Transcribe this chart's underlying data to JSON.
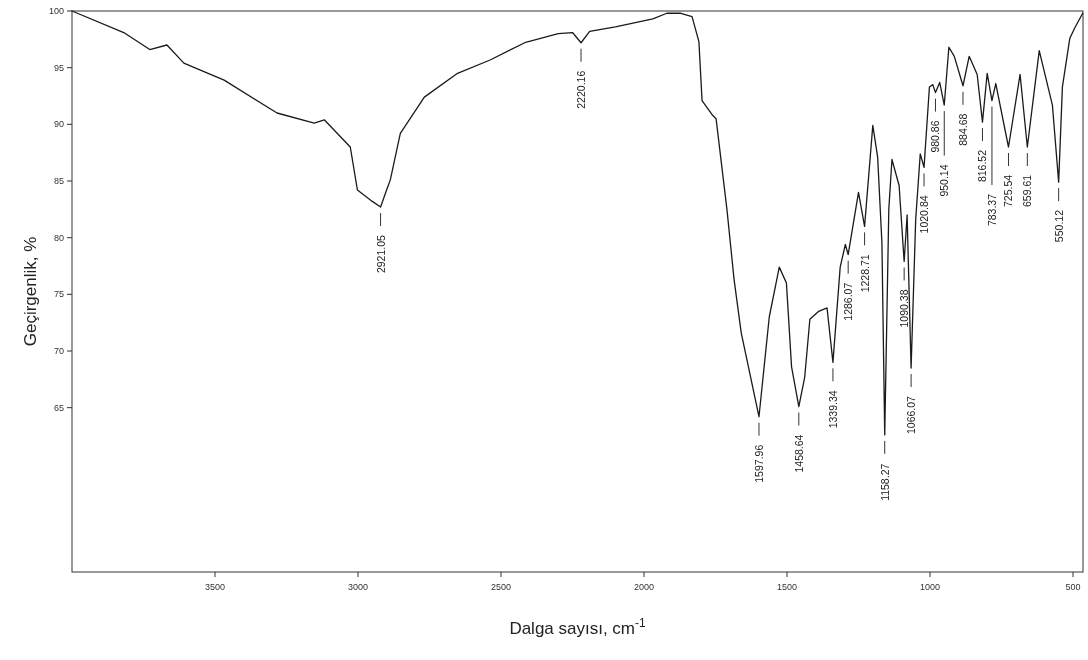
{
  "chart_data": {
    "type": "line",
    "xlabel": "Dalga sayısı, cm$^{-1}$",
    "ylabel": "Geçirgenlik, %",
    "xlim": [
      4000,
      465
    ],
    "ylim": [
      50.5,
      100
    ],
    "xticks": [
      3500,
      3000,
      2500,
      2000,
      1500,
      1000,
      500
    ],
    "yticks": [
      65,
      70,
      75,
      80,
      85,
      90,
      95,
      100
    ],
    "x": [
      4000,
      3819,
      3728,
      3668,
      3609,
      3468,
      3283,
      3153,
      3118,
      3027,
      3002,
      2950,
      2921.05,
      2900,
      2887,
      2852,
      2768,
      2652,
      2536,
      2417,
      2300,
      2250,
      2220.16,
      2190,
      2100,
      1969,
      1920,
      1871,
      1832,
      1808,
      1797,
      1760,
      1748,
      1710,
      1685,
      1660,
      1597.96,
      1562,
      1527,
      1502,
      1484,
      1458.64,
      1438,
      1420,
      1389,
      1360,
      1339.34,
      1314,
      1296,
      1286.07,
      1250,
      1228.71,
      1200,
      1183,
      1168,
      1158.27,
      1144,
      1133,
      1108,
      1090.38,
      1080,
      1066.07,
      1050,
      1034,
      1020.84,
      1002,
      990,
      980.86,
      966,
      950.14,
      934,
      915,
      884.68,
      863,
      835,
      816.52,
      800,
      783.37,
      770,
      725.54,
      685,
      659.61,
      618,
      572,
      550.12,
      537,
      511,
      494,
      477,
      466
    ],
    "series": [
      {
        "color": "#1a1a1a",
        "values": [
          100,
          98.1,
          96.6,
          97.0,
          95.4,
          93.9,
          91.0,
          90.1,
          90.4,
          88.0,
          84.2,
          83.2,
          82.7,
          84.2,
          85.1,
          89.2,
          92.4,
          94.5,
          95.7,
          97.2,
          98.0,
          98.1,
          97.2,
          98.2,
          98.6,
          99.3,
          99.8,
          99.8,
          99.5,
          97.3,
          92.1,
          90.8,
          90.5,
          82.5,
          76.3,
          71.6,
          64.2,
          73.0,
          77.4,
          76.0,
          68.6,
          65.1,
          67.7,
          72.8,
          73.5,
          73.8,
          69.0,
          77.4,
          79.4,
          78.5,
          84.0,
          81.0,
          89.9,
          87.1,
          79.5,
          62.6,
          82.5,
          86.9,
          84.6,
          77.9,
          82.0,
          68.5,
          81.6,
          87.4,
          86.2,
          93.3,
          93.5,
          92.8,
          93.7,
          91.7,
          96.8,
          96.0,
          93.4,
          96.0,
          94.4,
          90.2,
          94.5,
          92.1,
          93.6,
          88.0,
          94.4,
          88.0,
          96.5,
          91.7,
          84.9,
          93.3,
          97.6,
          98.5,
          99.3,
          99.8
        ]
      }
    ],
    "annotations": [
      {
        "text": "2921.05",
        "x": 2921.05,
        "y": 82.7
      },
      {
        "text": "2220.16",
        "x": 2220.16,
        "y": 97.2
      },
      {
        "text": "1597.96",
        "x": 1597.96,
        "y": 64.2
      },
      {
        "text": "1458.64",
        "x": 1458.64,
        "y": 65.1
      },
      {
        "text": "1339.34",
        "x": 1339.34,
        "y": 69.0
      },
      {
        "text": "1286.07",
        "x": 1286.07,
        "y": 78.5
      },
      {
        "text": "1228.71",
        "x": 1228.71,
        "y": 81.0
      },
      {
        "text": "1158.27",
        "x": 1158.27,
        "y": 62.6
      },
      {
        "text": "1090.38",
        "x": 1090.38,
        "y": 77.9
      },
      {
        "text": "1066.07",
        "x": 1066.07,
        "y": 68.5
      },
      {
        "text": "1020.84",
        "x": 1020.84,
        "y": 86.2
      },
      {
        "text": "980.86",
        "x": 980.86,
        "y": 92.8
      },
      {
        "text": "950.14",
        "x": 950.14,
        "y": 91.7
      },
      {
        "text": "884.68",
        "x": 884.68,
        "y": 93.4
      },
      {
        "text": "816.52",
        "x": 816.52,
        "y": 90.2
      },
      {
        "text": "783.37",
        "x": 783.37,
        "y": 92.1
      },
      {
        "text": "725.54",
        "x": 725.54,
        "y": 88.0
      },
      {
        "text": "659.61",
        "x": 659.61,
        "y": 88.0
      },
      {
        "text": "550.12",
        "x": 550.12,
        "y": 84.9
      }
    ]
  }
}
